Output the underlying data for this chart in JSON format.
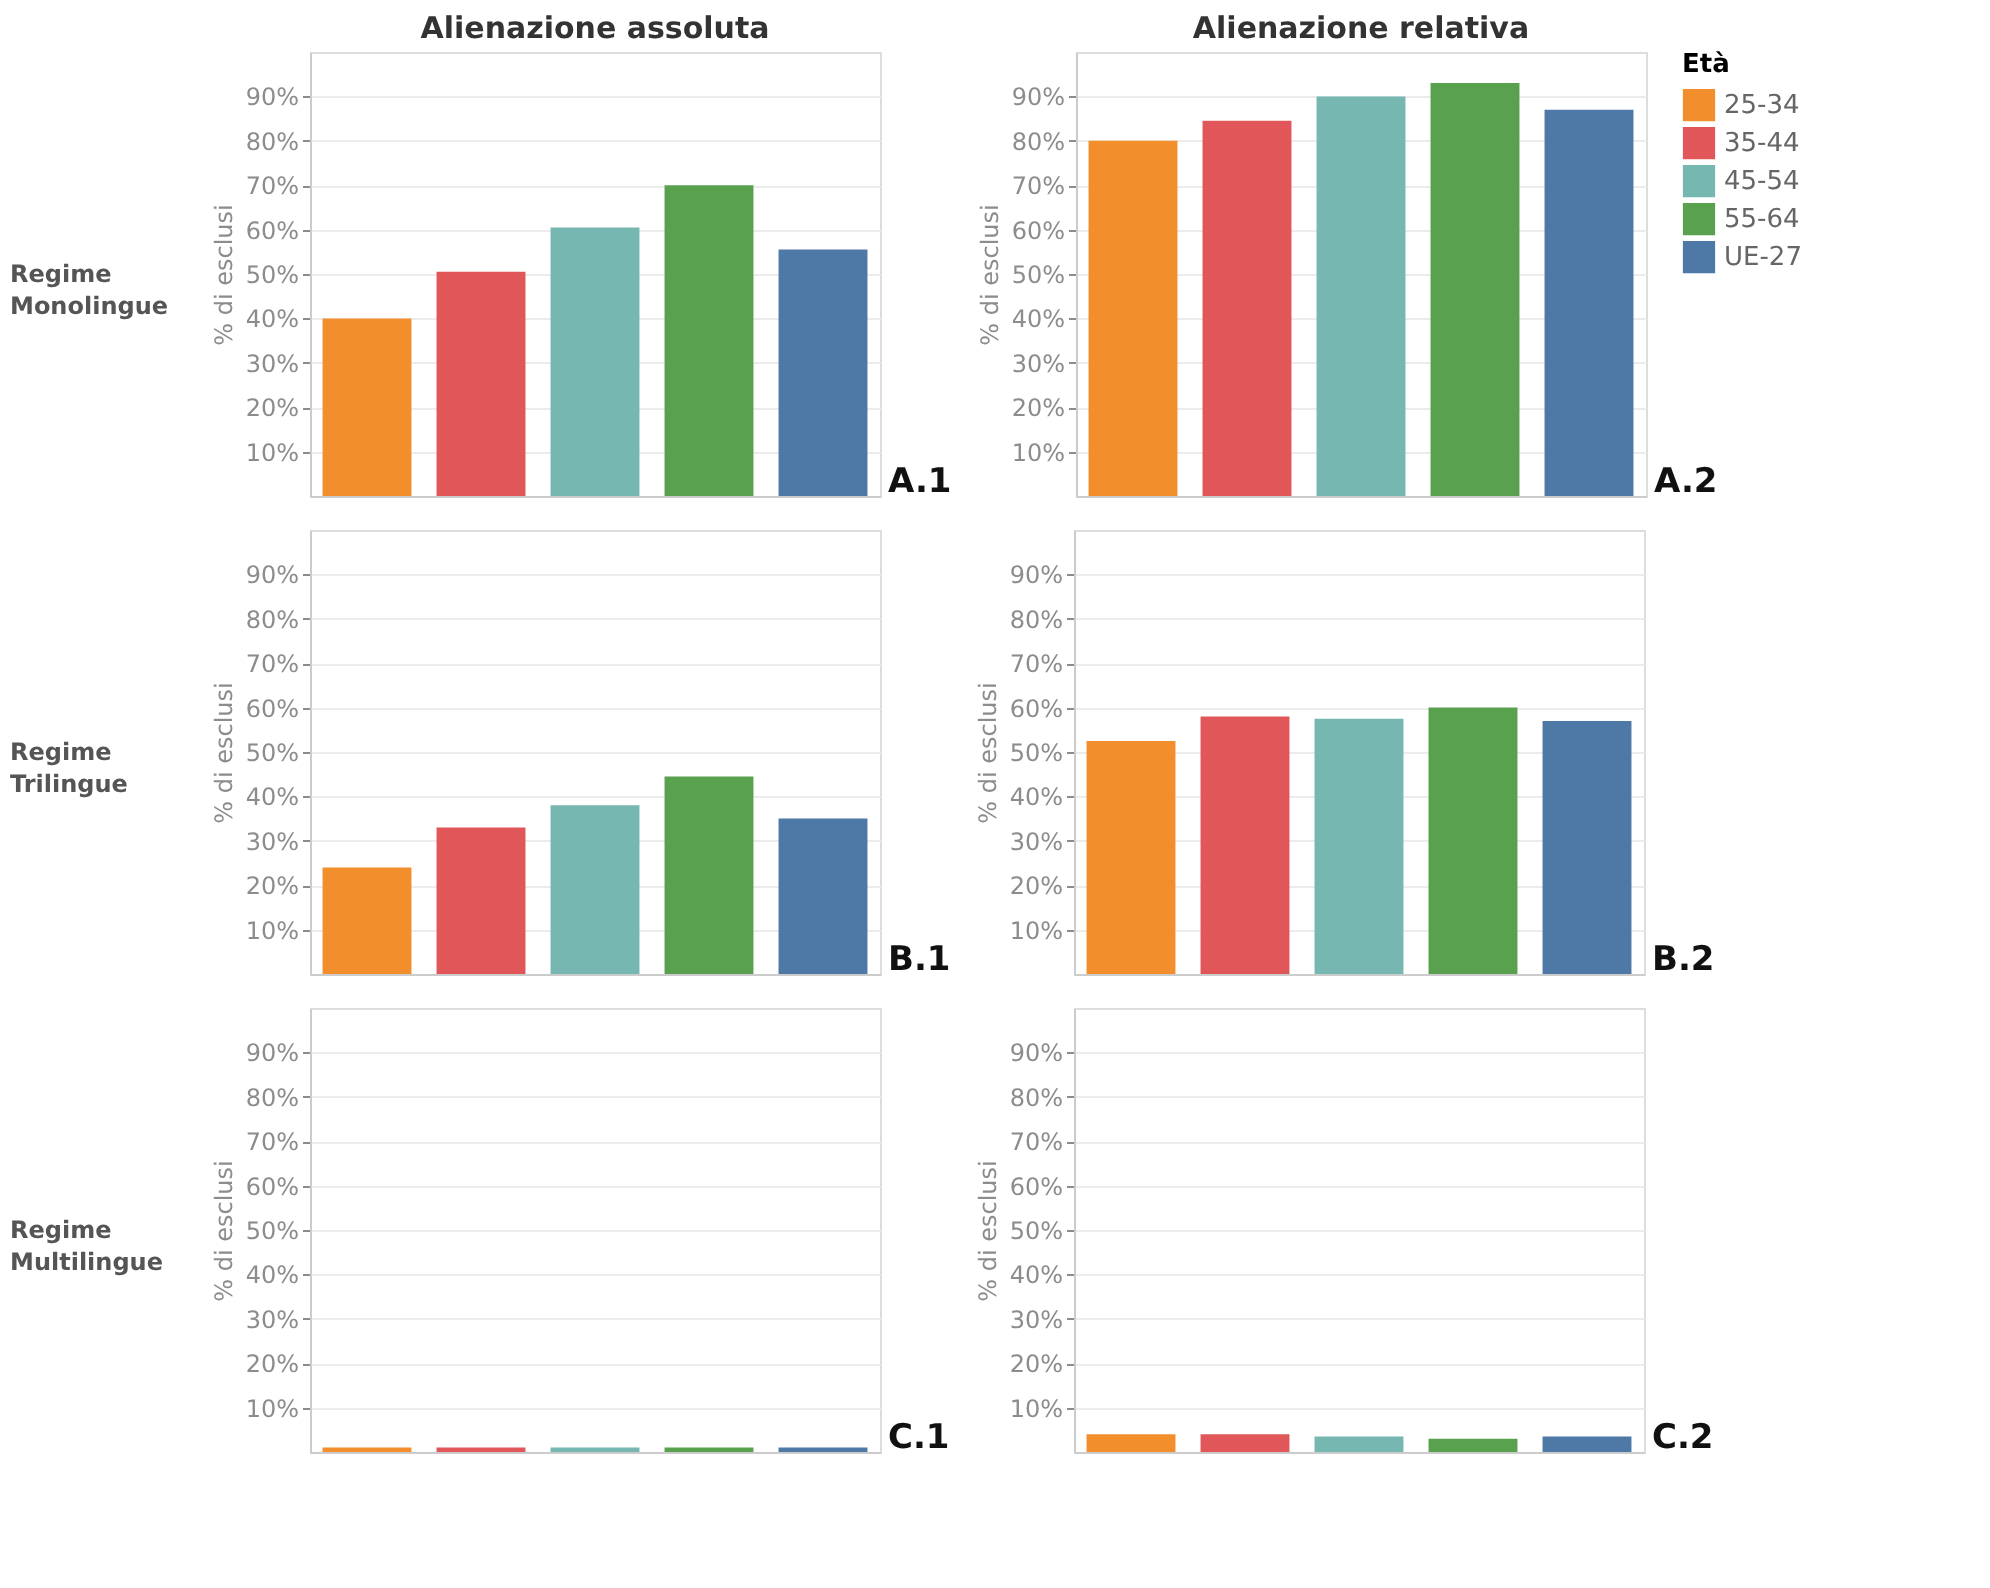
{
  "chart_data": [
    {
      "type": "bar",
      "title": "Alienazione assoluta",
      "ylabel": "% di esclusi",
      "categories": [
        null
      ],
      "series": [
        {
          "color": "#f28e2b",
          "values": [
            40
          ]
        },
        {
          "color": "#e15759",
          "values": [
            50.5
          ]
        },
        {
          "color": "#76b7b2",
          "values": [
            60.5
          ]
        },
        {
          "color": "#59a14f",
          "values": [
            70
          ]
        },
        {
          "color": "#4e79a7",
          "values": [
            55.5
          ]
        }
      ],
      "ylim": [
        0,
        100
      ],
      "yticks": [
        {
          "value": 10,
          "label": "10%"
        },
        {
          "value": 20,
          "label": "20%"
        },
        {
          "value": 30,
          "label": "30%"
        },
        {
          "value": 40,
          "label": "40%"
        },
        {
          "value": 50,
          "label": "50%"
        },
        {
          "value": 60,
          "label": "60%"
        },
        {
          "value": 70,
          "label": "70%"
        },
        {
          "value": 80,
          "label": "80%"
        },
        {
          "value": 90,
          "label": "90%"
        }
      ],
      "grid": "y",
      "tick_labels": "y",
      "annotations": [
        "A.1",
        "Regime\nMonolingue"
      ]
    },
    {
      "type": "bar",
      "title": "Alienazione relativa",
      "ylabel": "% di esclusi",
      "legend_title": "Età",
      "legend": "right",
      "categories": [
        null
      ],
      "series": [
        {
          "name": "25-34",
          "color": "#f28e2b",
          "values": [
            80
          ]
        },
        {
          "name": "35-44",
          "color": "#e15759",
          "values": [
            84.5
          ]
        },
        {
          "name": "45-54",
          "color": "#76b7b2",
          "values": [
            90
          ]
        },
        {
          "name": "55-64",
          "color": "#59a14f",
          "values": [
            93
          ]
        },
        {
          "name": "UE-27",
          "color": "#4e79a7",
          "values": [
            87
          ]
        }
      ],
      "ylim": [
        0,
        100
      ],
      "yticks": [
        {
          "value": 10,
          "label": "10%"
        },
        {
          "value": 20,
          "label": "20%"
        },
        {
          "value": 30,
          "label": "30%"
        },
        {
          "value": 40,
          "label": "40%"
        },
        {
          "value": 50,
          "label": "50%"
        },
        {
          "value": 60,
          "label": "60%"
        },
        {
          "value": 70,
          "label": "70%"
        },
        {
          "value": 80,
          "label": "80%"
        },
        {
          "value": 90,
          "label": "90%"
        }
      ],
      "grid": "y",
      "tick_labels": "y",
      "annotations": [
        "A.2"
      ]
    },
    {
      "type": "bar",
      "ylabel": "% di esclusi",
      "categories": [
        null
      ],
      "series": [
        {
          "color": "#f28e2b",
          "values": [
            24
          ]
        },
        {
          "color": "#e15759",
          "values": [
            33
          ]
        },
        {
          "color": "#76b7b2",
          "values": [
            38
          ]
        },
        {
          "color": "#59a14f",
          "values": [
            44.5
          ]
        },
        {
          "color": "#4e79a7",
          "values": [
            35
          ]
        }
      ],
      "ylim": [
        0,
        100
      ],
      "yticks": [
        {
          "value": 10,
          "label": "10%"
        },
        {
          "value": 20,
          "label": "20%"
        },
        {
          "value": 30,
          "label": "30%"
        },
        {
          "value": 40,
          "label": "40%"
        },
        {
          "value": 50,
          "label": "50%"
        },
        {
          "value": 60,
          "label": "60%"
        },
        {
          "value": 70,
          "label": "70%"
        },
        {
          "value": 80,
          "label": "80%"
        },
        {
          "value": 90,
          "label": "90%"
        }
      ],
      "grid": "y",
      "tick_labels": "y",
      "annotations": [
        "B.1",
        "Regime\nTrilingue"
      ]
    },
    {
      "type": "bar",
      "ylabel": "% di esclusi",
      "categories": [
        null
      ],
      "series": [
        {
          "color": "#f28e2b",
          "values": [
            52.5
          ]
        },
        {
          "color": "#e15759",
          "values": [
            58
          ]
        },
        {
          "color": "#76b7b2",
          "values": [
            57.5
          ]
        },
        {
          "color": "#59a14f",
          "values": [
            60
          ]
        },
        {
          "color": "#4e79a7",
          "values": [
            57
          ]
        }
      ],
      "ylim": [
        0,
        100
      ],
      "yticks": [
        {
          "value": 10,
          "label": "10%"
        },
        {
          "value": 20,
          "label": "20%"
        },
        {
          "value": 30,
          "label": "30%"
        },
        {
          "value": 40,
          "label": "40%"
        },
        {
          "value": 50,
          "label": "50%"
        },
        {
          "value": 60,
          "label": "60%"
        },
        {
          "value": 70,
          "label": "70%"
        },
        {
          "value": 80,
          "label": "80%"
        },
        {
          "value": 90,
          "label": "90%"
        }
      ],
      "grid": "y",
      "tick_labels": "y",
      "annotations": [
        "B.2"
      ]
    },
    {
      "type": "bar",
      "ylabel": "% di esclusi",
      "categories": [
        null
      ],
      "series": [
        {
          "color": "#f28e2b",
          "values": [
            1
          ]
        },
        {
          "color": "#e15759",
          "values": [
            1
          ]
        },
        {
          "color": "#76b7b2",
          "values": [
            1
          ]
        },
        {
          "color": "#59a14f",
          "values": [
            1
          ]
        },
        {
          "color": "#4e79a7",
          "values": [
            1
          ]
        }
      ],
      "ylim": [
        0,
        100
      ],
      "yticks": [
        {
          "value": 10,
          "label": "10%"
        },
        {
          "value": 20,
          "label": "20%"
        },
        {
          "value": 30,
          "label": "30%"
        },
        {
          "value": 40,
          "label": "40%"
        },
        {
          "value": 50,
          "label": "50%"
        },
        {
          "value": 60,
          "label": "60%"
        },
        {
          "value": 70,
          "label": "70%"
        },
        {
          "value": 80,
          "label": "80%"
        },
        {
          "value": 90,
          "label": "90%"
        }
      ],
      "grid": "y",
      "tick_labels": "y",
      "annotations": [
        "C.1",
        "Regime\nMultilingue"
      ]
    },
    {
      "type": "bar",
      "ylabel": "% di esclusi",
      "categories": [
        null
      ],
      "series": [
        {
          "color": "#f28e2b",
          "values": [
            4
          ]
        },
        {
          "color": "#e15759",
          "values": [
            4
          ]
        },
        {
          "color": "#76b7b2",
          "values": [
            3.5
          ]
        },
        {
          "color": "#59a14f",
          "values": [
            3
          ]
        },
        {
          "color": "#4e79a7",
          "values": [
            3.5
          ]
        }
      ],
      "ylim": [
        0,
        100
      ],
      "yticks": [
        {
          "value": 10,
          "label": "10%"
        },
        {
          "value": 20,
          "label": "20%"
        },
        {
          "value": 30,
          "label": "30%"
        },
        {
          "value": 40,
          "label": "40%"
        },
        {
          "value": 50,
          "label": "50%"
        },
        {
          "value": 60,
          "label": "60%"
        },
        {
          "value": 70,
          "label": "70%"
        },
        {
          "value": 80,
          "label": "80%"
        },
        {
          "value": 90,
          "label": "90%"
        }
      ],
      "grid": "y",
      "tick_labels": "y",
      "annotations": [
        "C.2"
      ]
    }
  ]
}
